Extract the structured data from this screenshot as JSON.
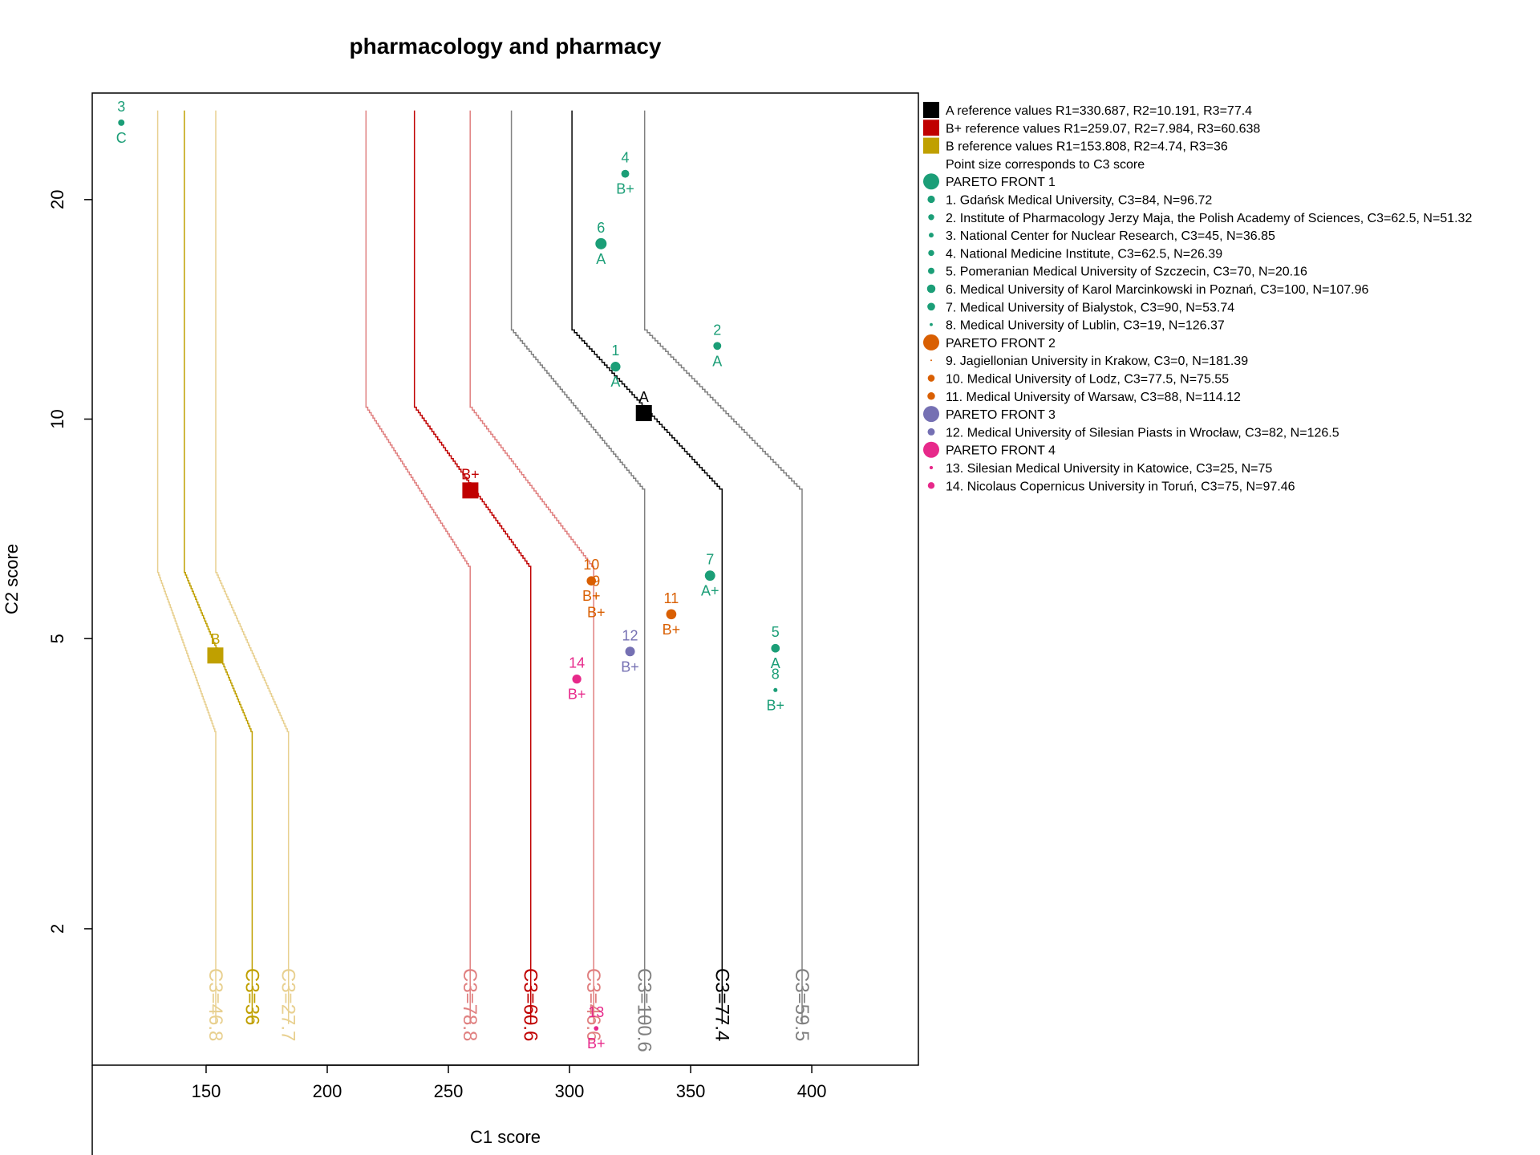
{
  "chart_data": {
    "type": "scatter",
    "title": "pharmacology and pharmacy",
    "xlabel": "C1 score",
    "ylabel": "C2 score",
    "x_range": [
      103,
      444
    ],
    "y_range_log": [
      1.3,
      28
    ],
    "y_scale": "log",
    "x_ticks": [
      150,
      200,
      250,
      300,
      350,
      400
    ],
    "y_ticks": [
      2,
      5,
      10,
      20
    ],
    "colors": {
      "front1": "#1b9e77",
      "front2": "#d95f02",
      "front3": "#7570b3",
      "front4": "#e7298a",
      "A": "#000000",
      "Bplus": "#c00000",
      "B": "#c0a000"
    },
    "references": [
      {
        "id": "A",
        "label": "A",
        "c1": 330.687,
        "c2": 10.191,
        "color": "#000000"
      },
      {
        "id": "Bplus",
        "label": "B+",
        "c1": 259.07,
        "c2": 7.984,
        "color": "#c00000"
      },
      {
        "id": "B",
        "label": "B",
        "c1": 153.808,
        "c2": 4.74,
        "color": "#c0a000"
      }
    ],
    "curves": [
      {
        "ref": "A",
        "top_x": 301,
        "bottom_x": 363,
        "color": "#000000",
        "label": "C3=77.4",
        "label_x": 363
      },
      {
        "ref": "A",
        "top_x": 276,
        "bottom_x": 331,
        "color": "#808080",
        "label": "C3=100.6",
        "label_x": 331
      },
      {
        "ref": "A",
        "top_x": 331,
        "bottom_x": 396,
        "color": "#808080",
        "label": "C3=59.5",
        "label_x": 396
      },
      {
        "ref": "Bplus",
        "top_x": 236,
        "bottom_x": 284,
        "color": "#c00000",
        "label": "C3=60.6",
        "label_x": 284
      },
      {
        "ref": "Bplus",
        "top_x": 216,
        "bottom_x": 259,
        "color": "#e08080",
        "label": "C3=78.8",
        "label_x": 259
      },
      {
        "ref": "Bplus",
        "top_x": 259,
        "bottom_x": 310,
        "color": "#e08080",
        "label": "C3=46.6",
        "label_x": 310
      },
      {
        "ref": "B",
        "top_x": 141,
        "bottom_x": 169,
        "color": "#c0a000",
        "label": "C3=36",
        "label_x": 169
      },
      {
        "ref": "B",
        "top_x": 130,
        "bottom_x": 154,
        "color": "#e8d090",
        "label": "C3=46.8",
        "label_x": 154
      },
      {
        "ref": "B",
        "top_x": 154,
        "bottom_x": 184,
        "color": "#e8d090",
        "label": "C3=27.7",
        "label_x": 184
      }
    ],
    "points": [
      {
        "id": "1",
        "c1": 319,
        "c2": 11.8,
        "grade": "A",
        "front": 1,
        "c3": 84
      },
      {
        "id": "2",
        "c1": 361,
        "c2": 12.6,
        "grade": "A",
        "front": 1,
        "c3": 62.5
      },
      {
        "id": "3",
        "c1": 115,
        "c2": 25.5,
        "grade": "C",
        "front": 1,
        "c3": 45
      },
      {
        "id": "4",
        "c1": 323,
        "c2": 21.7,
        "grade": "B+",
        "front": 1,
        "c3": 62.5
      },
      {
        "id": "5",
        "c1": 385,
        "c2": 4.85,
        "grade": "A",
        "front": 1,
        "c3": 70
      },
      {
        "id": "6",
        "c1": 313,
        "c2": 17.4,
        "grade": "A",
        "front": 1,
        "c3": 100
      },
      {
        "id": "7",
        "c1": 358,
        "c2": 6.1,
        "grade": "A+",
        "front": 1,
        "c3": 90
      },
      {
        "id": "8",
        "c1": 385,
        "c2": 4.25,
        "grade": "B+",
        "front": 1,
        "c3": 19
      },
      {
        "id": "9",
        "c1": 311,
        "c2": 5.7,
        "grade": "B+",
        "front": 2,
        "c3": 0
      },
      {
        "id": "10",
        "c1": 309,
        "c2": 6.0,
        "grade": "B+",
        "front": 2,
        "c3": 77.5
      },
      {
        "id": "11",
        "c1": 342,
        "c2": 5.4,
        "grade": "B+",
        "front": 2,
        "c3": 88
      },
      {
        "id": "12",
        "c1": 325,
        "c2": 4.8,
        "grade": "B+",
        "front": 3,
        "c3": 82
      },
      {
        "id": "13",
        "c1": 311,
        "c2": 1.46,
        "grade": "B+",
        "front": 4,
        "c3": 25
      },
      {
        "id": "14",
        "c1": 303,
        "c2": 4.4,
        "grade": "B+",
        "front": 4,
        "c3": 75
      }
    ],
    "legend": {
      "position": "right",
      "entries": [
        {
          "text": "A reference values R1=330.687, R2=10.191, R3=77.4",
          "symbol": "square",
          "color": "#000000"
        },
        {
          "text": "B+ reference values R1=259.07, R2=7.984, R3=60.638",
          "symbol": "square",
          "color": "#c00000"
        },
        {
          "text": "B reference values R1=153.808, R2=4.74, R3=36",
          "symbol": "square",
          "color": "#c0a000"
        },
        {
          "text": "Point size corresponds to C3 score",
          "symbol": "none",
          "color": ""
        },
        {
          "text": "PARETO FRONT 1",
          "symbol": "bigdot",
          "color": "#1b9e77"
        },
        {
          "text": "1. Gdańsk Medical University, C3=84, N=96.72",
          "symbol": "dot",
          "color": "#1b9e77",
          "size": 84
        },
        {
          "text": "2. Institute of Pharmacology Jerzy Maja, the Polish Academy of Sciences, C3=62.5, N=51.32",
          "symbol": "dot",
          "color": "#1b9e77",
          "size": 62.5
        },
        {
          "text": "3. National Center for Nuclear Research, C3=45, N=36.85",
          "symbol": "dot",
          "color": "#1b9e77",
          "size": 45
        },
        {
          "text": "4. National Medicine Institute, C3=62.5, N=26.39",
          "symbol": "dot",
          "color": "#1b9e77",
          "size": 62.5
        },
        {
          "text": "5. Pomeranian Medical University of Szczecin, C3=70, N=20.16",
          "symbol": "dot",
          "color": "#1b9e77",
          "size": 70
        },
        {
          "text": "6. Medical University of Karol Marcinkowski in Poznań, C3=100, N=107.96",
          "symbol": "dot",
          "color": "#1b9e77",
          "size": 100
        },
        {
          "text": "7. Medical University of Bialystok, C3=90, N=53.74",
          "symbol": "dot",
          "color": "#1b9e77",
          "size": 90
        },
        {
          "text": "8. Medical University of Lublin, C3=19, N=126.37",
          "symbol": "dot",
          "color": "#1b9e77",
          "size": 19
        },
        {
          "text": "PARETO FRONT 2",
          "symbol": "bigdot",
          "color": "#d95f02"
        },
        {
          "text": "9. Jagiellonian University in Krakow, C3=0, N=181.39",
          "symbol": "dot",
          "color": "#d95f02",
          "size": 0
        },
        {
          "text": "10. Medical University of Lodz, C3=77.5, N=75.55",
          "symbol": "dot",
          "color": "#d95f02",
          "size": 77.5
        },
        {
          "text": "11. Medical University of Warsaw, C3=88, N=114.12",
          "symbol": "dot",
          "color": "#d95f02",
          "size": 88
        },
        {
          "text": "PARETO FRONT 3",
          "symbol": "bigdot",
          "color": "#7570b3"
        },
        {
          "text": "12. Medical University of Silesian Piasts in Wrocław, C3=82, N=126.5",
          "symbol": "dot",
          "color": "#7570b3",
          "size": 82
        },
        {
          "text": "PARETO FRONT 4",
          "symbol": "bigdot",
          "color": "#e7298a"
        },
        {
          "text": "13. Silesian Medical University in Katowice, C3=25, N=75",
          "symbol": "dot",
          "color": "#e7298a",
          "size": 25
        },
        {
          "text": "14. Nicolaus Copernicus University in Toruń, C3=75, N=97.46",
          "symbol": "dot",
          "color": "#e7298a",
          "size": 75
        }
      ]
    }
  }
}
